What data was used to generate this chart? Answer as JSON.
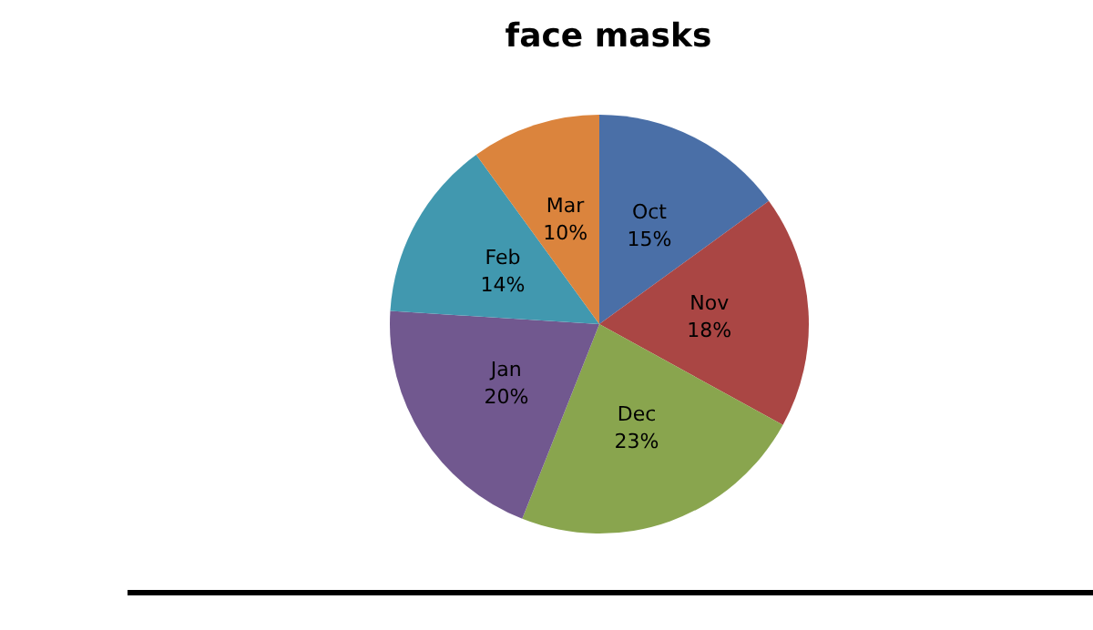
{
  "chart_data": {
    "type": "pie",
    "title": "face masks",
    "categories": [
      "Oct",
      "Nov",
      "Dec",
      "Jan",
      "Feb",
      "Mar"
    ],
    "values": [
      15,
      18,
      23,
      20,
      14,
      10
    ],
    "colors": [
      "#4a6fa7",
      "#aa4644",
      "#89a54e",
      "#71588f",
      "#4198af",
      "#db843d"
    ],
    "value_labels": [
      "15%",
      "18%",
      "23%",
      "20%",
      "14%",
      "10%"
    ],
    "legend": false
  }
}
